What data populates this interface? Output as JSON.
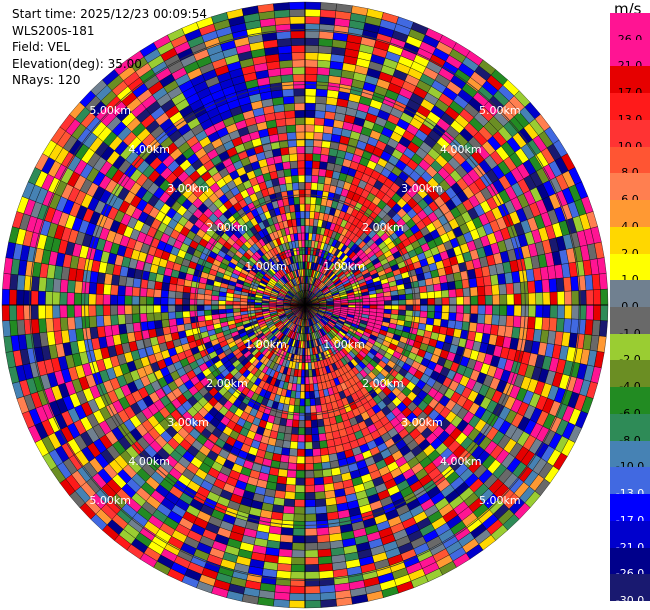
{
  "info": {
    "start_time": "Start time: 2025/12/23 00:09:54",
    "station": "WLS200s-181",
    "field": "Field: VEL",
    "elevation": "Elevation(deg): 35.00",
    "nrays": "NRays: 120"
  },
  "colorbar": {
    "unit": "m/s",
    "ticks": [
      "26.0",
      "21.0",
      "17.0",
      "13.0",
      "10.0",
      "8.0",
      "6.0",
      "4.0",
      "2.0",
      "1.0",
      "0.0",
      "-1.0",
      "-2.0",
      "-4.0",
      "-6.0",
      "-8.0",
      "-10.0",
      "-13.0",
      "-17.0",
      "-21.0",
      "-26.0",
      "-30.0"
    ],
    "colors": [
      "#ff1493",
      "#ff1493",
      "#e60000",
      "#ff1a1a",
      "#ff3333",
      "#ff5533",
      "#ff7f50",
      "#ff9933",
      "#ffd700",
      "#ffff00",
      "#708090",
      "#696969",
      "#9acd32",
      "#6b8e23",
      "#228b22",
      "#2e8b57",
      "#4682b4",
      "#4169e1",
      "#0000ff",
      "#0000cd",
      "#00008b",
      "#191970"
    ]
  },
  "range_rings": [
    "1.00km",
    "2.00km",
    "3.00km",
    "4.00km",
    "5.00km"
  ],
  "chart_data": {
    "type": "ppi",
    "field": "VEL",
    "units": "m/s",
    "nrays": 120,
    "elevation_deg": 35.0,
    "range_rings_km": [
      1,
      2,
      3,
      4,
      5
    ],
    "colorbar_range": [
      -30.0,
      26.0
    ],
    "features": [
      {
        "description": "positive velocity (orange-red) wedge",
        "azimuth_deg": [
          20,
          40
        ],
        "range_km": [
          1.5,
          2.8
        ],
        "value": 13
      },
      {
        "description": "positive velocity (pink) sector",
        "azimuth_deg": [
          80,
          110
        ],
        "range_km": [
          0.5,
          1.5
        ],
        "value": 26
      },
      {
        "description": "positive velocity (orange-red) wedge",
        "azimuth_deg": [
          145,
          170
        ],
        "range_km": [
          1.0,
          2.7
        ],
        "value": 10
      },
      {
        "description": "negative velocity (blue) band",
        "azimuth_deg": [
          330,
          345
        ],
        "range_km": [
          3.7,
          4.6
        ],
        "value": -17
      }
    ]
  }
}
